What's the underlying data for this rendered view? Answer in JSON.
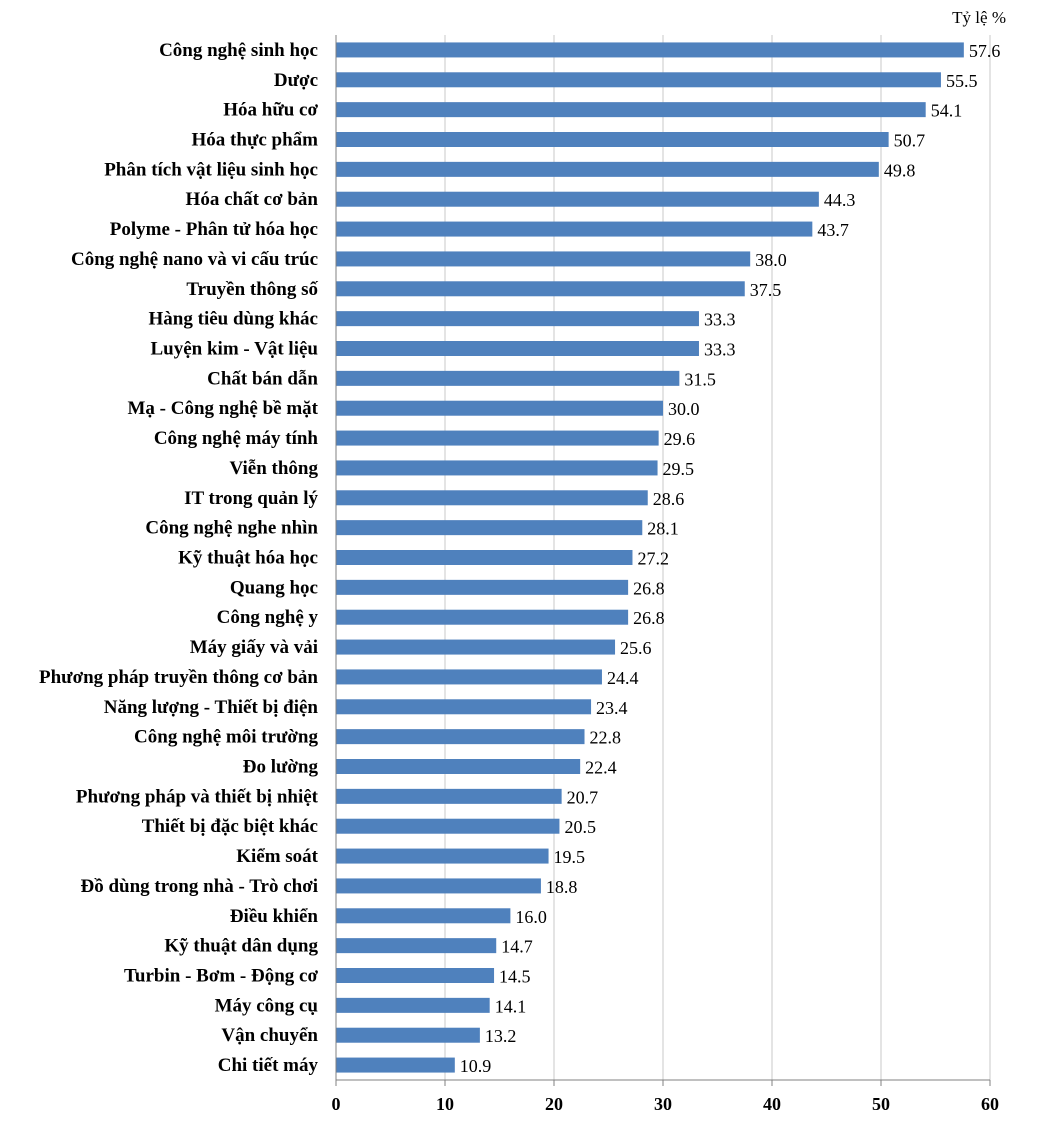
{
  "chart_data": {
    "type": "bar",
    "orientation": "horizontal",
    "unit_label": "Tỷ lệ %",
    "categories": [
      "Công nghệ sinh học",
      "Dược",
      "Hóa hữu cơ",
      "Hóa thực phẩm",
      "Phân tích vật liệu sinh học",
      "Hóa chất cơ bản",
      "Polyme - Phân tử hóa học",
      "Công nghệ nano và vi cấu trúc",
      "Truyền thông số",
      "Hàng tiêu dùng khác",
      "Luyện kim - Vật liệu",
      "Chất bán dẫn",
      "Mạ - Công nghệ bề mặt",
      "Công nghệ máy tính",
      "Viễn thông",
      "IT trong quản lý",
      "Công nghệ nghe nhìn",
      "Kỹ thuật hóa học",
      "Quang học",
      "Công nghệ y",
      "Máy giấy và vải",
      "Phương pháp truyền thông cơ bản",
      "Năng lượng - Thiết bị điện",
      "Công nghệ môi trường",
      "Đo lường",
      "Phương pháp và thiết bị nhiệt",
      "Thiết bị đặc biệt khác",
      "Kiểm soát",
      "Đồ dùng trong nhà - Trò chơi",
      "Điều khiển",
      "Kỹ thuật dân dụng",
      "Turbin - Bơm - Động cơ",
      "Máy công cụ",
      "Vận chuyển",
      "Chi tiết máy"
    ],
    "values": [
      57.6,
      55.5,
      54.1,
      50.7,
      49.8,
      44.3,
      43.7,
      38.0,
      37.5,
      33.3,
      33.3,
      31.5,
      30.0,
      29.6,
      29.5,
      28.6,
      28.1,
      27.2,
      26.8,
      26.8,
      25.6,
      24.4,
      23.4,
      22.8,
      22.4,
      20.7,
      20.5,
      19.5,
      18.8,
      16.0,
      14.7,
      14.5,
      14.1,
      13.2,
      10.9
    ],
    "value_labels": [
      "57.6",
      "55.5",
      "54.1",
      "50.7",
      "49.8",
      "44.3",
      "43.7",
      "38.0",
      "37.5",
      "33.3",
      "33.3",
      "31.5",
      "30.0",
      "29.6",
      "29.5",
      "28.6",
      "28.1",
      "27.2",
      "26.8",
      "26.8",
      "25.6",
      "24.4",
      "23.4",
      "22.8",
      "22.4",
      "20.7",
      "20.5",
      "19.5",
      "18.8",
      "16.0",
      "14.7",
      "14.5",
      "14.1",
      "13.2",
      "10.9"
    ],
    "x_ticks": [
      "0",
      "10",
      "20",
      "30",
      "40",
      "50",
      "60"
    ],
    "xlim": [
      0,
      60
    ],
    "grid": "vertical",
    "legend": "none",
    "bar_color": "#4f81bd"
  }
}
